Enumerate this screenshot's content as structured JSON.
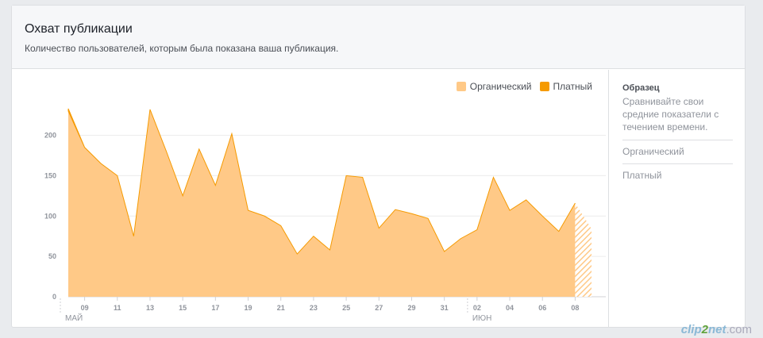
{
  "header": {
    "title": "Охват публикации",
    "subtitle": "Количество пользователей, которым была показана ваша публикация."
  },
  "legend": {
    "organic": "Органический",
    "paid": "Платный"
  },
  "colors": {
    "organic": "#ffc987",
    "paid": "#f59a00",
    "grid": "#ececec",
    "axis": "#90949c"
  },
  "side": {
    "title": "Образец",
    "description": "Сравнивайте свои средние показатели с течением времени.",
    "items": [
      "Органический",
      "Платный"
    ]
  },
  "watermark": {
    "a": "clip",
    "b": "2",
    "c": "net",
    "d": ".com"
  },
  "chart_data": {
    "type": "area",
    "ylim": [
      0,
      230
    ],
    "yticks": [
      0,
      50,
      100,
      150,
      200
    ],
    "x": [
      "2017-05-08",
      "2017-05-09",
      "2017-05-10",
      "2017-05-11",
      "2017-05-12",
      "2017-05-13",
      "2017-05-14",
      "2017-05-15",
      "2017-05-16",
      "2017-05-17",
      "2017-05-18",
      "2017-05-19",
      "2017-05-20",
      "2017-05-21",
      "2017-05-22",
      "2017-05-23",
      "2017-05-24",
      "2017-05-25",
      "2017-05-26",
      "2017-05-27",
      "2017-05-28",
      "2017-05-29",
      "2017-05-30",
      "2017-05-31",
      "2017-06-01",
      "2017-06-02",
      "2017-06-03",
      "2017-06-04",
      "2017-06-05",
      "2017-06-06",
      "2017-06-07",
      "2017-06-08",
      "2017-06-09"
    ],
    "xtick_labels": [
      "09",
      "11",
      "13",
      "15",
      "17",
      "19",
      "21",
      "23",
      "25",
      "27",
      "29",
      "31",
      "02",
      "04",
      "06",
      "08"
    ],
    "xtick_index": [
      1,
      3,
      5,
      7,
      9,
      11,
      13,
      15,
      17,
      19,
      21,
      23,
      25,
      27,
      29,
      31
    ],
    "month_labels": [
      {
        "label": "МАЙ",
        "index": 0
      },
      {
        "label": "ИЮН",
        "index": 25
      }
    ],
    "series": [
      {
        "name": "Органический",
        "values": [
          230,
          185,
          165,
          150,
          75,
          232,
          180,
          125,
          183,
          138,
          202,
          107,
          100,
          88,
          53,
          75,
          58,
          150,
          148,
          85,
          108,
          103,
          97,
          56,
          72,
          83,
          148,
          107,
          120,
          100,
          81,
          116,
          84
        ]
      },
      {
        "name": "Платный",
        "values": [
          3,
          0,
          0,
          0,
          0,
          0,
          0,
          0,
          0,
          0,
          0,
          0,
          0,
          0,
          0,
          0,
          0,
          0,
          0,
          0,
          0,
          0,
          0,
          0,
          0,
          0,
          0,
          0,
          0,
          0,
          0,
          0,
          0
        ]
      }
    ]
  }
}
